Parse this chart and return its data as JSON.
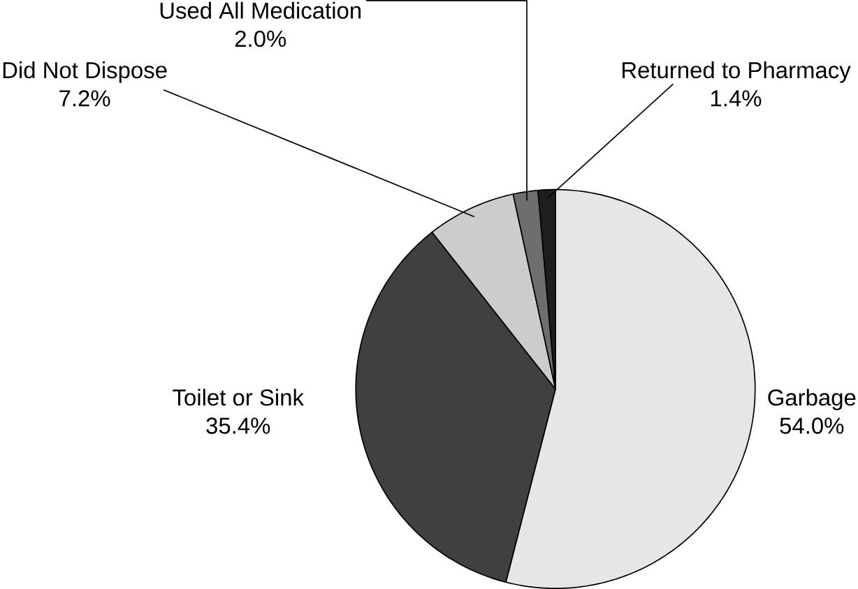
{
  "chart_data": {
    "type": "pie",
    "categories": [
      "Garbage",
      "Toilet or Sink",
      "Did Not Dispose",
      "Used All Medication",
      "Returned to Pharmacy"
    ],
    "values": [
      54.0,
      35.4,
      7.2,
      2.0,
      1.4
    ],
    "value_labels": [
      "54.0%",
      "35.4%",
      "7.2%",
      "2.0%",
      "1.4%"
    ],
    "colors": [
      "#e6e6e6",
      "#404040",
      "#cccccc",
      "#6e6e6e",
      "#1e1e1e"
    ]
  }
}
